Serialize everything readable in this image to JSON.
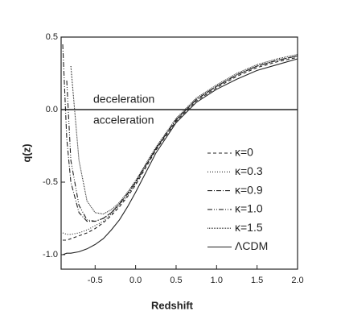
{
  "chart_data": {
    "type": "line",
    "xlabel": "Redshift",
    "ylabel": "q(z)",
    "annotations": [
      "deceleration",
      "acceleration"
    ],
    "x": [
      -0.9,
      -0.85,
      -0.8,
      -0.7,
      -0.6,
      -0.5,
      -0.4,
      -0.3,
      -0.2,
      -0.1,
      0,
      0.25,
      0.5,
      0.75,
      1.0,
      1.25,
      1.5,
      1.75,
      2.0
    ],
    "series": [
      {
        "name": "κ=0",
        "color": "#222222",
        "dash": "4,3",
        "values": [
          -0.9,
          -0.9,
          -0.89,
          -0.87,
          -0.85,
          -0.82,
          -0.78,
          -0.73,
          -0.67,
          -0.6,
          -0.52,
          -0.28,
          -0.08,
          0.06,
          0.15,
          0.23,
          0.29,
          0.33,
          0.36
        ]
      },
      {
        "name": "κ=0.3",
        "color": "#222222",
        "dash": "1,2",
        "values": [
          -0.85,
          -0.86,
          -0.86,
          -0.85,
          -0.83,
          -0.8,
          -0.77,
          -0.72,
          -0.66,
          -0.59,
          -0.51,
          -0.27,
          -0.07,
          0.07,
          0.16,
          0.24,
          0.3,
          0.34,
          0.37
        ]
      },
      {
        "name": "κ=0.9",
        "color": "#222222",
        "dash": "6,2,1,2",
        "values": [
          0.45,
          -0.2,
          -0.5,
          -0.71,
          -0.77,
          -0.77,
          -0.75,
          -0.71,
          -0.65,
          -0.58,
          -0.5,
          -0.27,
          -0.07,
          0.07,
          0.16,
          0.24,
          0.3,
          0.34,
          0.37
        ]
      },
      {
        "name": "κ=1.0",
        "color": "#222222",
        "dash": "6,2,1,2,1,2",
        "values": [
          null,
          0.2,
          -0.35,
          -0.66,
          -0.76,
          -0.77,
          -0.75,
          -0.71,
          -0.65,
          -0.58,
          -0.5,
          -0.27,
          -0.07,
          0.07,
          0.16,
          0.24,
          0.3,
          0.34,
          0.37
        ]
      },
      {
        "name": "κ=1.5",
        "color": "#222222",
        "dash": "1,1",
        "values": [
          null,
          null,
          0.3,
          -0.35,
          -0.63,
          -0.71,
          -0.72,
          -0.69,
          -0.64,
          -0.57,
          -0.49,
          -0.26,
          -0.06,
          0.08,
          0.17,
          0.25,
          0.31,
          0.35,
          0.38
        ]
      },
      {
        "name": "ΛCDM",
        "color": "#222222",
        "dash": "none",
        "values": [
          -1.0,
          -0.99,
          -0.99,
          -0.98,
          -0.96,
          -0.93,
          -0.89,
          -0.83,
          -0.76,
          -0.67,
          -0.57,
          -0.3,
          -0.09,
          0.05,
          0.14,
          0.21,
          0.27,
          0.31,
          0.35
        ]
      }
    ],
    "xlim": [
      -0.92,
      2.0
    ],
    "ylim": [
      -1.1,
      0.5
    ],
    "xticks": [
      -0.5,
      {
        "value": 0,
        "label": "0.0"
      },
      0.5,
      {
        "value": 1,
        "label": "1.0"
      },
      1.5,
      {
        "value": 2,
        "label": "2.0"
      }
    ],
    "yticks": [
      {
        "value": -1,
        "label": "-1.0"
      },
      -0.5,
      {
        "value": 0,
        "label": "0.0"
      },
      0.5
    ],
    "reference_line": 0,
    "legend": "lower-right"
  }
}
